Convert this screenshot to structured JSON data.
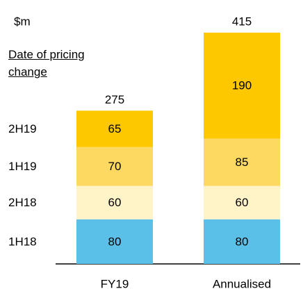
{
  "chart_data": {
    "type": "stacked_bar",
    "unit_label": "$m",
    "legend_title": "Date of pricing change",
    "categories": [
      "FY19",
      "Annualised"
    ],
    "totals": [
      275,
      415
    ],
    "series": [
      {
        "name": "1H18",
        "color": "#5bc0e8",
        "values": [
          80,
          80
        ]
      },
      {
        "name": "2H18",
        "color": "#fff3c8",
        "values": [
          60,
          60
        ]
      },
      {
        "name": "1H19",
        "color": "#fdd961",
        "values": [
          70,
          85
        ]
      },
      {
        "name": "2H19",
        "color": "#fdc800",
        "values": [
          65,
          190
        ]
      }
    ]
  }
}
